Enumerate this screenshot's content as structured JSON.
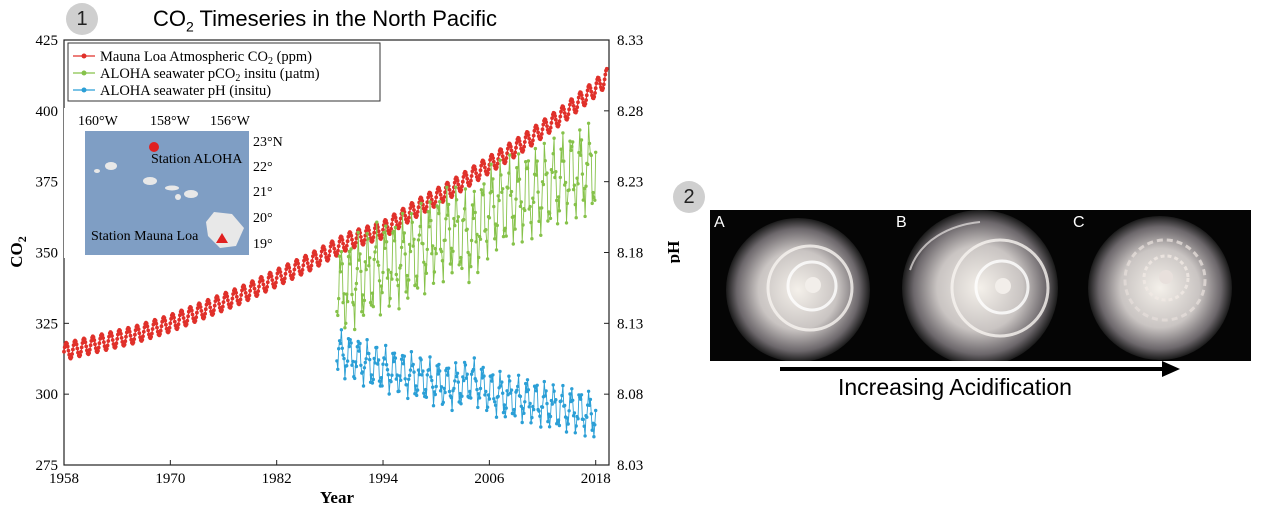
{
  "panels": {
    "chart_badge": "1",
    "photo_badge": "2",
    "arrow_caption": "Increasing Acidification",
    "photo_labels": [
      "A",
      "B",
      "C"
    ]
  },
  "map_inset": {
    "lon_labels": [
      "160°W",
      "158°W",
      "156°W"
    ],
    "lat_labels": [
      "23°N",
      "22°",
      "21°",
      "20°",
      "19°"
    ],
    "station_aloha": "Station ALOHA",
    "station_mauna_loa": "Station Mauna Loa",
    "colors": {
      "sea": "#7f9ec4",
      "land": "#e8e8e8",
      "marker": "#e02020"
    }
  },
  "chart_data": {
    "type": "line",
    "title_main": "CO",
    "title_sub": "2",
    "title_rest": " Timeseries in the North Pacific",
    "xlabel": "Year",
    "ylabel_main": "CO",
    "ylabel_sub": "2",
    "y2label": "pH",
    "xlim": [
      1958,
      2019.5
    ],
    "ylim": [
      275,
      425
    ],
    "y2lim": [
      8.03,
      8.33
    ],
    "x_ticks": [
      "1958",
      "1970",
      "1982",
      "1994",
      "2006",
      "2018"
    ],
    "y_ticks": [
      "275",
      "300",
      "325",
      "350",
      "375",
      "400",
      "425"
    ],
    "y2_ticks": [
      "8.03",
      "8.08",
      "8.13",
      "8.18",
      "8.23",
      "8.28",
      "8.33"
    ],
    "legend_position": "top-left",
    "legend": [
      {
        "main": "Mauna Loa Atmospheric CO",
        "sub": "2",
        "rest": " (ppm)"
      },
      {
        "main": "ALOHA seawater pCO",
        "sub": "2",
        "rest": " insitu (µatm)"
      },
      {
        "main": "ALOHA seawater pH (insitu)",
        "sub": "",
        "rest": ""
      }
    ],
    "series": [
      {
        "axis": "left",
        "color": "#e0302a",
        "x": [
          1958,
          1962,
          1966,
          1970,
          1974,
          1978,
          1982,
          1986,
          1990,
          1994,
          1998,
          2002,
          2006,
          2010,
          2014,
          2018,
          2019.3
        ],
        "y": [
          315,
          318,
          321,
          325,
          330,
          335,
          341,
          347,
          354,
          358,
          366,
          373,
          381,
          389,
          398,
          408,
          412
        ],
        "seasonal_amplitude": 3
      },
      {
        "axis": "left",
        "color": "#86c24a",
        "x": [
          1988.8,
          1990,
          1992,
          1994,
          1996,
          1998,
          2000,
          2002,
          2004,
          2006,
          2008,
          2010,
          2012,
          2014,
          2016,
          2018
        ],
        "y": [
          336,
          338,
          342,
          345,
          347,
          350,
          355,
          358,
          355,
          365,
          368,
          370,
          372,
          376,
          378,
          380
        ],
        "seasonal_amplitude": 12
      },
      {
        "axis": "right",
        "color": "#2b9fd6",
        "x": [
          1988.8,
          1990,
          1992,
          1994,
          1996,
          1998,
          2000,
          2002,
          2004,
          2006,
          2008,
          2010,
          2012,
          2014,
          2016,
          2018
        ],
        "y": [
          8.11,
          8.107,
          8.102,
          8.098,
          8.095,
          8.092,
          8.088,
          8.085,
          8.09,
          8.082,
          8.078,
          8.076,
          8.073,
          8.07,
          8.068,
          8.065
        ],
        "seasonal_amplitude": 0.012
      }
    ]
  }
}
